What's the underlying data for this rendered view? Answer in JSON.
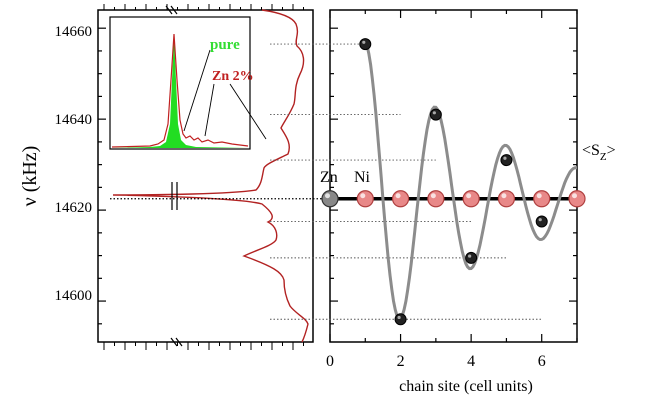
{
  "colors": {
    "spectrum": "#b22222",
    "pure_fill": "#22dd22",
    "pure_label": "#33dd33",
    "zn_label": "#c02020",
    "curve": "#8c8c8c",
    "site_pink": "#e88888",
    "site_dark": "#222222",
    "site_gray": "#777777"
  },
  "left_panel": {
    "ylabel": "ν (kHz)",
    "yticks": [
      "14600",
      "14620",
      "14640",
      "14660"
    ],
    "ylim": [
      14591,
      14664
    ]
  },
  "inset": {
    "label_pure": "pure",
    "label_zn": "Zn 2%"
  },
  "right_panel": {
    "site_label_zn": "Zn",
    "site_label_ni": "Ni",
    "sz_label": "<S",
    "sz_sub": "Z",
    "sz_close": ">"
  },
  "chart_data": [
    {
      "type": "line",
      "description_panel": "NMR spectrum (frequency vertical)",
      "ylabel": "ν (kHz)",
      "ylim": [
        14591,
        14664
      ],
      "yticks": [
        14600,
        14620,
        14640,
        14660
      ],
      "satellite_peaks_khz": [
        14656.5,
        14641.0,
        14631.0,
        14617.5,
        14609.5,
        14596.0
      ],
      "central_line_khz": 14622.5
    },
    {
      "type": "scatter",
      "xlabel": "chain site (cell units)",
      "xticks": [
        0,
        2,
        4,
        6
      ],
      "xlim": [
        0,
        7
      ],
      "ylim": [
        14591,
        14664
      ],
      "ylabel": "<SZ>",
      "points": [
        {
          "x": 1,
          "y": 14656.5
        },
        {
          "x": 2,
          "y": 14596.0
        },
        {
          "x": 3,
          "y": 14641.0
        },
        {
          "x": 4,
          "y": 14609.5
        },
        {
          "x": 5,
          "y": 14631.0
        },
        {
          "x": 6,
          "y": 14617.5
        }
      ],
      "sites": [
        0,
        1,
        2,
        3,
        4,
        5,
        6,
        7
      ],
      "chain_level_khz": 14622.5
    }
  ]
}
